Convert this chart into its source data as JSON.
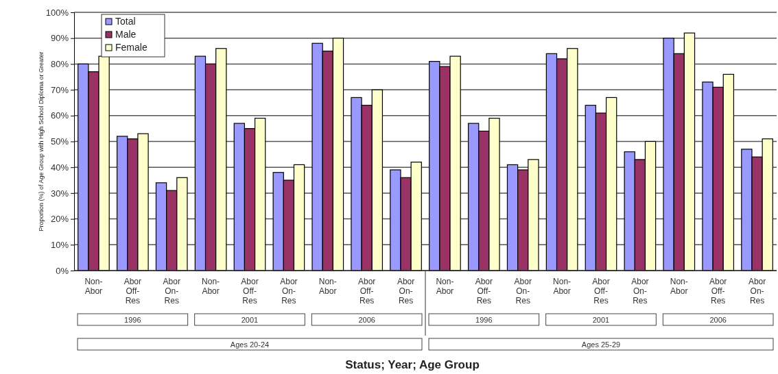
{
  "chart_data": {
    "type": "bar",
    "xlabel": "Status; Year; Age Group",
    "ylabel": "Proportion (%) of Age Group with High School Diploma or Greater",
    "categories": [
      "Non-Abor",
      "Abor Off-Res",
      "Abor On-Res",
      "Non-Abor",
      "Abor Off-Res",
      "Abor On-Res",
      "Non-Abor",
      "Abor Off-Res",
      "Abor On-Res",
      "Non-Abor",
      "Abor Off-Res",
      "Abor On-Res",
      "Non-Abor",
      "Abor Off-Res",
      "Abor On-Res",
      "Non-Abor",
      "Abor Off-Res",
      "Abor On-Res"
    ],
    "series": [
      {
        "name": "Total",
        "color": "#9999ff",
        "values": [
          80,
          52,
          34,
          83,
          57,
          38,
          88,
          67,
          39,
          81,
          57,
          41,
          84,
          64,
          46,
          90,
          73,
          47
        ]
      },
      {
        "name": "Male",
        "color": "#993366",
        "values": [
          77,
          51,
          31,
          80,
          55,
          35,
          85,
          64,
          36,
          79,
          54,
          39,
          82,
          61,
          43,
          84,
          71,
          44
        ]
      },
      {
        "name": "Female",
        "color": "#ffffcc",
        "values": [
          83,
          53,
          36,
          86,
          59,
          41,
          90,
          70,
          42,
          83,
          59,
          43,
          86,
          67,
          50,
          92,
          76,
          51
        ]
      }
    ],
    "ylim": [
      0,
      100
    ],
    "yticks": [
      {
        "value": 0,
        "label": "0%"
      },
      {
        "value": 10,
        "label": "10%"
      },
      {
        "value": 20,
        "label": "20%"
      },
      {
        "value": 30,
        "label": "30%"
      },
      {
        "value": 40,
        "label": "40%"
      },
      {
        "value": 50,
        "label": "50%"
      },
      {
        "value": 60,
        "label": "60%"
      },
      {
        "value": 70,
        "label": "70%"
      },
      {
        "value": 80,
        "label": "80%"
      },
      {
        "value": 90,
        "label": "90%"
      },
      {
        "value": 100,
        "label": "100%"
      }
    ],
    "annotations": [
      "1996",
      "2001",
      "2006",
      "1996",
      "2001",
      "2006",
      "Ages 20-24",
      "Ages 25-29"
    ],
    "grid": "y",
    "legend": "top left"
  }
}
